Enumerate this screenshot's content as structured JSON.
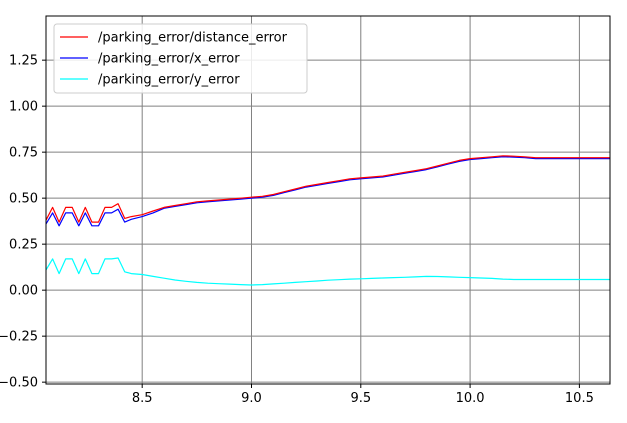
{
  "chart_data": {
    "type": "line",
    "title": "",
    "xlabel": "",
    "ylabel": "",
    "xlim": [
      8.06,
      10.64
    ],
    "ylim": [
      -0.51,
      1.49
    ],
    "xticks": [
      8.5,
      9.0,
      9.5,
      10.0,
      10.5
    ],
    "xtick_labels": [
      "8.5",
      "9.0",
      "9.5",
      "10.0",
      "10.5"
    ],
    "yticks": [
      -0.5,
      -0.25,
      0.0,
      0.25,
      0.5,
      0.75,
      1.0,
      1.25
    ],
    "ytick_labels": [
      "−0.50",
      "−0.25",
      "0.00",
      "0.25",
      "0.50",
      "0.75",
      "1.00",
      "1.25"
    ],
    "grid": true,
    "legend_position": "top-left",
    "series": [
      {
        "name": "/parking_error/distance_error",
        "color": "#ff0000",
        "x": [
          8.06,
          8.09,
          8.12,
          8.15,
          8.18,
          8.21,
          8.24,
          8.27,
          8.3,
          8.33,
          8.36,
          8.39,
          8.42,
          8.45,
          8.5,
          8.55,
          8.6,
          8.65,
          8.7,
          8.75,
          8.8,
          8.85,
          8.9,
          8.95,
          9.0,
          9.05,
          9.1,
          9.15,
          9.2,
          9.25,
          9.3,
          9.35,
          9.4,
          9.45,
          9.5,
          9.55,
          9.6,
          9.65,
          9.7,
          9.75,
          9.8,
          9.85,
          9.9,
          9.95,
          10.0,
          10.05,
          10.1,
          10.15,
          10.2,
          10.25,
          10.3,
          10.35,
          10.4,
          10.45,
          10.5,
          10.55,
          10.6,
          10.64
        ],
        "values": [
          0.38,
          0.45,
          0.37,
          0.45,
          0.45,
          0.37,
          0.45,
          0.37,
          0.37,
          0.45,
          0.45,
          0.47,
          0.39,
          0.4,
          0.41,
          0.43,
          0.45,
          0.46,
          0.47,
          0.48,
          0.485,
          0.49,
          0.495,
          0.5,
          0.505,
          0.51,
          0.52,
          0.535,
          0.55,
          0.565,
          0.575,
          0.585,
          0.595,
          0.605,
          0.61,
          0.615,
          0.62,
          0.63,
          0.64,
          0.65,
          0.66,
          0.675,
          0.69,
          0.705,
          0.715,
          0.72,
          0.725,
          0.73,
          0.728,
          0.725,
          0.72,
          0.72,
          0.72,
          0.72,
          0.72,
          0.72,
          0.72,
          0.72
        ]
      },
      {
        "name": "/parking_error/x_error",
        "color": "#0000ff",
        "x": [
          8.06,
          8.09,
          8.12,
          8.15,
          8.18,
          8.21,
          8.24,
          8.27,
          8.3,
          8.33,
          8.36,
          8.39,
          8.42,
          8.45,
          8.5,
          8.55,
          8.6,
          8.65,
          8.7,
          8.75,
          8.8,
          8.85,
          8.9,
          8.95,
          9.0,
          9.05,
          9.1,
          9.15,
          9.2,
          9.25,
          9.3,
          9.35,
          9.4,
          9.45,
          9.5,
          9.55,
          9.6,
          9.65,
          9.7,
          9.75,
          9.8,
          9.85,
          9.9,
          9.95,
          10.0,
          10.05,
          10.1,
          10.15,
          10.2,
          10.25,
          10.3,
          10.35,
          10.4,
          10.45,
          10.5,
          10.55,
          10.6,
          10.64
        ],
        "values": [
          0.36,
          0.42,
          0.35,
          0.42,
          0.42,
          0.35,
          0.42,
          0.35,
          0.35,
          0.42,
          0.42,
          0.44,
          0.37,
          0.385,
          0.4,
          0.42,
          0.445,
          0.455,
          0.465,
          0.475,
          0.48,
          0.485,
          0.49,
          0.495,
          0.5,
          0.505,
          0.515,
          0.53,
          0.545,
          0.56,
          0.57,
          0.58,
          0.59,
          0.6,
          0.605,
          0.61,
          0.615,
          0.625,
          0.635,
          0.645,
          0.655,
          0.67,
          0.685,
          0.7,
          0.71,
          0.715,
          0.72,
          0.725,
          0.723,
          0.72,
          0.715,
          0.715,
          0.715,
          0.715,
          0.715,
          0.715,
          0.715,
          0.715
        ]
      },
      {
        "name": "/parking_error/y_error",
        "color": "#00ffff",
        "x": [
          8.06,
          8.09,
          8.12,
          8.15,
          8.18,
          8.21,
          8.24,
          8.27,
          8.3,
          8.33,
          8.36,
          8.39,
          8.42,
          8.45,
          8.5,
          8.55,
          8.6,
          8.65,
          8.7,
          8.75,
          8.8,
          8.85,
          8.9,
          8.95,
          9.0,
          9.05,
          9.1,
          9.15,
          9.2,
          9.25,
          9.3,
          9.35,
          9.4,
          9.45,
          9.5,
          9.55,
          9.6,
          9.65,
          9.7,
          9.75,
          9.8,
          9.85,
          9.9,
          9.95,
          10.0,
          10.05,
          10.1,
          10.15,
          10.2,
          10.25,
          10.3,
          10.35,
          10.4,
          10.45,
          10.5,
          10.55,
          10.6,
          10.64
        ],
        "values": [
          0.11,
          0.17,
          0.09,
          0.17,
          0.17,
          0.09,
          0.17,
          0.09,
          0.09,
          0.17,
          0.17,
          0.175,
          0.1,
          0.09,
          0.085,
          0.075,
          0.065,
          0.055,
          0.048,
          0.042,
          0.038,
          0.035,
          0.033,
          0.03,
          0.028,
          0.03,
          0.034,
          0.038,
          0.042,
          0.046,
          0.05,
          0.054,
          0.057,
          0.06,
          0.062,
          0.064,
          0.066,
          0.068,
          0.07,
          0.072,
          0.075,
          0.074,
          0.072,
          0.07,
          0.068,
          0.066,
          0.064,
          0.06,
          0.058,
          0.058,
          0.058,
          0.058,
          0.058,
          0.058,
          0.058,
          0.058,
          0.058,
          0.058
        ]
      }
    ]
  }
}
